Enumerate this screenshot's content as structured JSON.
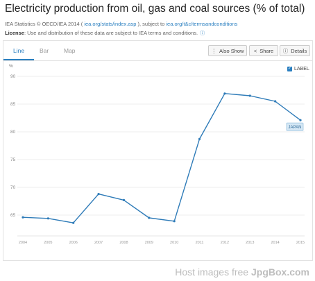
{
  "page": {
    "title": "Electricity production from oil, gas and coal sources (% of total)",
    "source_prefix": "IEA Statistics © OECD/IEA 2014 (",
    "source_link": "iea.org/stats/index.asp",
    "source_mid": "), subject to",
    "terms_link": "iea.org/t&c/termsandconditions",
    "license_label": "License",
    "license_text": ": Use and distribution of these data are subject to IEA terms and conditions.",
    "info_icon": "info-icon"
  },
  "tabs": [
    {
      "label": "Line",
      "active": true
    },
    {
      "label": "Bar",
      "active": false
    },
    {
      "label": "Map",
      "active": false
    }
  ],
  "toolbar": {
    "also_show": "Also Show",
    "share": "Share",
    "details": "Details",
    "also_show_icon": "vertical-dots-icon",
    "share_icon": "share-icon",
    "details_icon": "info-circle-icon"
  },
  "label_toggle": {
    "text": "LABEL",
    "checked": true
  },
  "footer": {
    "prefix": "Host images free ",
    "brand": "JpgBox.com"
  },
  "chart_data": {
    "type": "line",
    "title": "",
    "xlabel": "",
    "ylabel": "%",
    "x": [
      "2004",
      "2005",
      "2006",
      "2007",
      "2008",
      "2009",
      "2010",
      "2011",
      "2012",
      "2013",
      "2014",
      "2015"
    ],
    "series": [
      {
        "name": "JAPAN",
        "values": [
          64.6,
          64.4,
          63.6,
          68.8,
          67.7,
          64.5,
          63.9,
          78.7,
          86.9,
          86.5,
          85.5,
          82.1
        ],
        "color": "#2e7bb8"
      }
    ],
    "yticks": [
      65,
      70,
      75,
      80,
      85,
      90
    ],
    "ylim": [
      62,
      91.5
    ],
    "grid": true,
    "series_label_position": "end-of-line"
  }
}
